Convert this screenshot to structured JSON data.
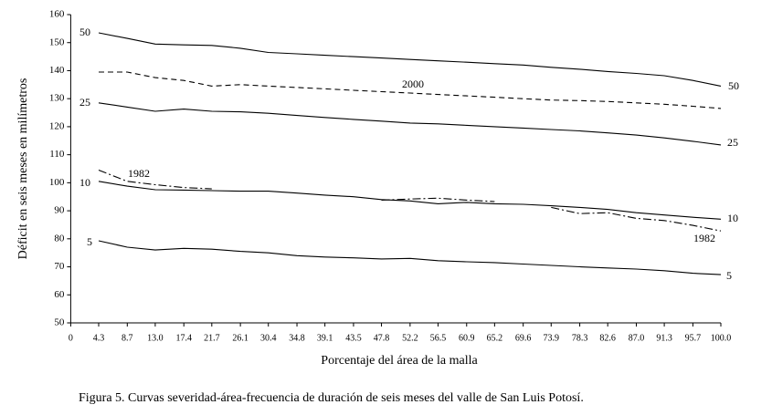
{
  "chart_data": {
    "type": "line",
    "y_label": "Déficit en seis meses en milímetros",
    "x_label": "Porcentaje del área de la malla",
    "caption": "Figura 5. Curvas severidad-área-frecuencia de duración de seis meses del valle de San Luis Potosí.",
    "x": [
      4.3,
      8.7,
      13.0,
      17.4,
      21.7,
      26.1,
      30.4,
      34.8,
      39.1,
      43.5,
      47.8,
      52.2,
      56.5,
      60.9,
      65.2,
      69.6,
      73.9,
      78.3,
      82.6,
      87.0,
      91.3,
      95.7,
      100.0
    ],
    "xlim": [
      0,
      100
    ],
    "xticks": [
      0,
      4.3,
      8.7,
      {
        "value": 13,
        "label": "13.0"
      },
      17.4,
      21.7,
      26.1,
      30.4,
      34.8,
      39.1,
      43.5,
      47.8,
      52.2,
      56.5,
      60.9,
      65.2,
      69.6,
      73.9,
      78.3,
      82.6,
      {
        "value": 87,
        "label": "87.0"
      },
      91.3,
      95.7,
      {
        "value": 100,
        "label": "100.0"
      }
    ],
    "ylim": [
      50,
      160
    ],
    "yticks": [
      50,
      60,
      70,
      80,
      90,
      100,
      110,
      120,
      130,
      140,
      150,
      160
    ],
    "series": [
      {
        "name": "50",
        "color": "#000000",
        "linestyle": "solid",
        "values": [
          153.5,
          151.5,
          149.5,
          149.2,
          149,
          148,
          146.5,
          146,
          145.5,
          145,
          144.5,
          144,
          143.5,
          143,
          142.5,
          142,
          141.2,
          140.5,
          139.7,
          139,
          138.2,
          136.5,
          134.5
        ]
      },
      {
        "name": "2000",
        "color": "#000000",
        "linestyle": "dashed",
        "values": [
          139.5,
          139.5,
          137.5,
          136.5,
          134.5,
          135,
          134.5,
          134,
          133.5,
          133,
          132.5,
          132,
          131.5,
          131,
          130.5,
          130,
          129.5,
          129.3,
          129,
          128.5,
          128,
          127.3,
          126.5
        ]
      },
      {
        "name": "25",
        "color": "#000000",
        "linestyle": "solid",
        "values": [
          128.5,
          127,
          125.5,
          126.3,
          125.5,
          125.3,
          124.8,
          124,
          123.3,
          122.6,
          122,
          121.3,
          121,
          120.5,
          120,
          119.5,
          119,
          118.5,
          117.8,
          117,
          116,
          114.8,
          113.5
        ]
      },
      {
        "name": "1982",
        "color": "#000000",
        "linestyle": "dashdot",
        "values": [
          104.5,
          100.5,
          99.3,
          98.3,
          97.8,
          null,
          null,
          null,
          null,
          null,
          93.8,
          94.2,
          94.5,
          93.8,
          93.3,
          null,
          91.2,
          89,
          89.3,
          87.3,
          86.5,
          84.8,
          82.8
        ]
      },
      {
        "name": "10",
        "color": "#000000",
        "linestyle": "solid",
        "values": [
          100.5,
          98.8,
          97.5,
          97.4,
          97.2,
          97,
          97,
          96.3,
          95.6,
          95,
          94,
          93.5,
          92.5,
          93,
          92.5,
          92.3,
          91.8,
          91.2,
          90.5,
          89.3,
          88.5,
          87.7,
          87
        ]
      },
      {
        "name": "5",
        "color": "#000000",
        "linestyle": "solid",
        "values": [
          79.3,
          77,
          76,
          76.6,
          76.3,
          75.5,
          75,
          74,
          73.5,
          73.2,
          72.8,
          73,
          72.2,
          71.8,
          71.5,
          71,
          70.5,
          70,
          69.6,
          69.2,
          68.6,
          67.7,
          67.2
        ]
      }
    ]
  }
}
